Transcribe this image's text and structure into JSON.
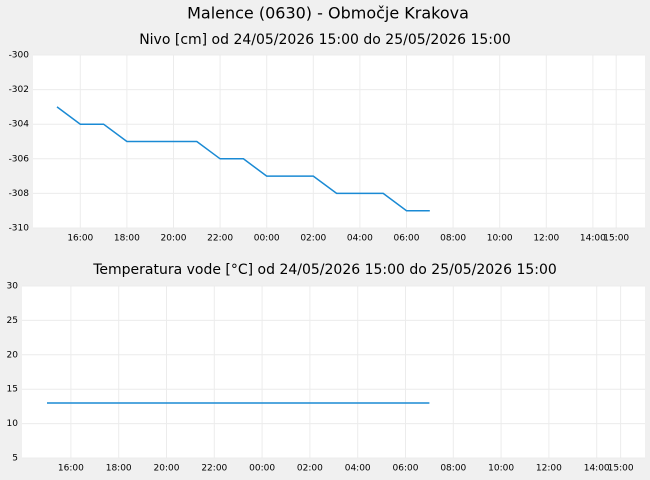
{
  "title": "Malence (0630) - Območje Krakova",
  "chart_data": [
    {
      "type": "line",
      "title": "Nivo [cm] od 24/05/2026 15:00 do 25/05/2026 15:00",
      "categories": [
        null,
        "16:00",
        null,
        "18:00",
        null,
        "20:00",
        null,
        "22:00",
        null,
        "00:00",
        null,
        "02:00",
        null,
        "04:00",
        null,
        "06:00",
        null,
        "08:00",
        null,
        "10:00",
        null,
        "12:00",
        null,
        "14:00",
        "15:00"
      ],
      "series": [
        {
          "name": "Nivo",
          "color": "#1a8ad4",
          "values": [
            -303,
            -304,
            -304,
            -305,
            -305,
            -305,
            -305,
            -306,
            -306,
            -307,
            -307,
            -307,
            -308,
            -308,
            -308,
            -309,
            -309,
            null,
            null,
            null,
            null,
            null,
            null,
            null,
            null
          ]
        }
      ],
      "ylim": [
        -310,
        -300
      ],
      "yticks": [
        -310,
        -308,
        -306,
        -304,
        -302,
        -300
      ],
      "grid": true
    },
    {
      "type": "line",
      "title": "Temperatura vode [°C] od 24/05/2026 15:00 do 25/05/2026 15:00",
      "categories": [
        null,
        "16:00",
        null,
        "18:00",
        null,
        "20:00",
        null,
        "22:00",
        null,
        "00:00",
        null,
        "02:00",
        null,
        "04:00",
        null,
        "06:00",
        null,
        "08:00",
        null,
        "10:00",
        null,
        "12:00",
        null,
        "14:00",
        "15:00"
      ],
      "series": [
        {
          "name": "Temperatura vode",
          "color": "#1a8ad4",
          "values": [
            13,
            13,
            13,
            13,
            13,
            13,
            13,
            13,
            13,
            13,
            13,
            13,
            13,
            13,
            13,
            13,
            13,
            null,
            null,
            null,
            null,
            null,
            null,
            null,
            null
          ]
        }
      ],
      "ylim": [
        5,
        30
      ],
      "yticks": [
        5,
        10,
        15,
        20,
        25,
        30
      ],
      "grid": true
    }
  ]
}
